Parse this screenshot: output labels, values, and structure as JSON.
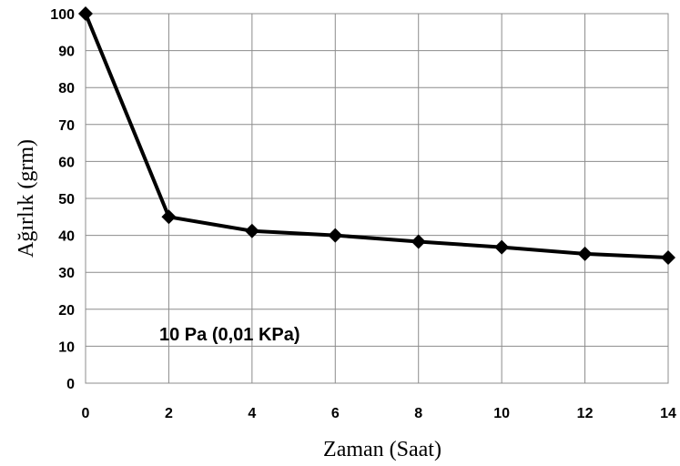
{
  "chart_data": {
    "type": "line",
    "x": [
      0,
      2,
      4,
      6,
      8,
      10,
      12,
      14
    ],
    "series": [
      {
        "values": [
          100,
          45,
          41.2,
          40,
          38.3,
          36.8,
          35,
          34
        ],
        "color": "#000000",
        "marker": "diamond"
      }
    ],
    "xlabel": "Zaman  (Saat)",
    "ylabel": "Ağırlık  (grm)",
    "xlim": [
      0,
      14
    ],
    "ylim": [
      0,
      100
    ],
    "xticks": [
      0,
      2,
      4,
      6,
      8,
      10,
      12,
      14
    ],
    "yticks": [
      0,
      10,
      20,
      30,
      40,
      50,
      60,
      70,
      80,
      90,
      100
    ],
    "grid": true,
    "annotation": "10 Pa  (0,01 KPa)"
  }
}
